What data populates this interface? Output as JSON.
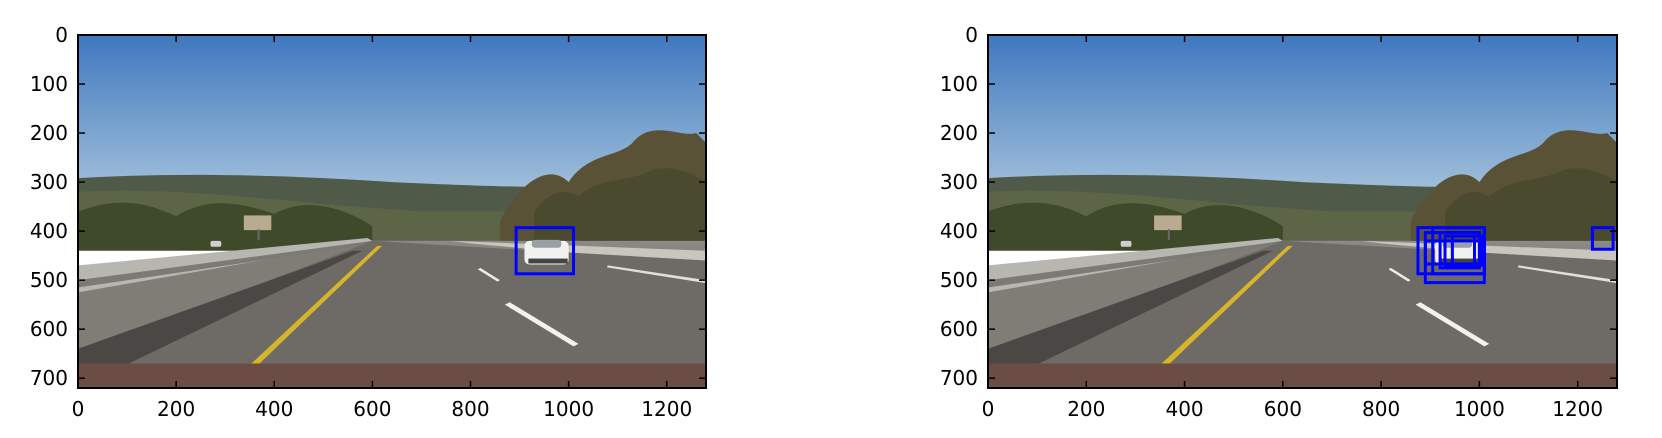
{
  "chart_data": [
    {
      "type": "image",
      "xlim": [
        0,
        1280
      ],
      "ylim": [
        720,
        0
      ],
      "xticks": [
        "0",
        "200",
        "400",
        "600",
        "800",
        "1000",
        "1200"
      ],
      "yticks": [
        "0",
        "100",
        "200",
        "300",
        "400",
        "500",
        "600",
        "700"
      ],
      "box_color": "#0000ff",
      "boxes": [
        {
          "x1": 893,
          "y1": 393,
          "x2": 1010,
          "y2": 487
        }
      ]
    },
    {
      "type": "image",
      "xlim": [
        0,
        1280
      ],
      "ylim": [
        720,
        0
      ],
      "xticks": [
        "0",
        "200",
        "400",
        "600",
        "800",
        "1000",
        "1200"
      ],
      "yticks": [
        "0",
        "100",
        "200",
        "300",
        "400",
        "500",
        "600",
        "700"
      ],
      "box_color": "#0000ff",
      "boxes": [
        {
          "x1": 875,
          "y1": 393,
          "x2": 1010,
          "y2": 487
        },
        {
          "x1": 890,
          "y1": 403,
          "x2": 1000,
          "y2": 467
        },
        {
          "x1": 890,
          "y1": 420,
          "x2": 1010,
          "y2": 505
        },
        {
          "x1": 905,
          "y1": 393,
          "x2": 1010,
          "y2": 487
        },
        {
          "x1": 920,
          "y1": 403,
          "x2": 1000,
          "y2": 475
        },
        {
          "x1": 930,
          "y1": 410,
          "x2": 1005,
          "y2": 470
        },
        {
          "x1": 945,
          "y1": 410,
          "x2": 990,
          "y2": 470
        },
        {
          "x1": 1230,
          "y1": 393,
          "x2": 1272,
          "y2": 437
        }
      ]
    }
  ]
}
